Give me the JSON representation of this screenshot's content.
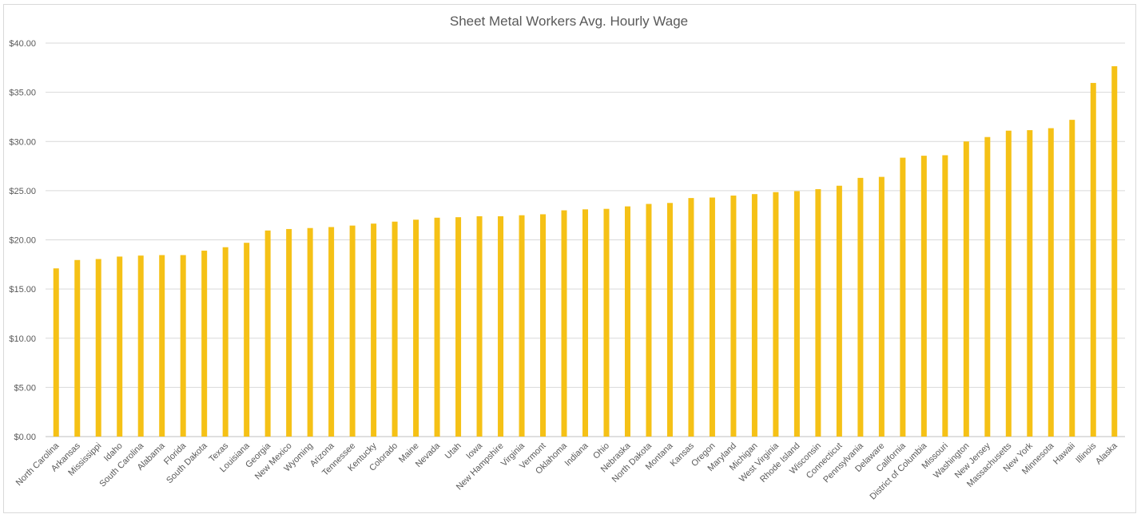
{
  "chart_data": {
    "type": "bar",
    "title": "Sheet Metal Workers Avg. Hourly Wage",
    "xlabel": "",
    "ylabel": "",
    "ylim": [
      0,
      40
    ],
    "yticks": [
      "$0.00",
      "$5.00",
      "$10.00",
      "$15.00",
      "$20.00",
      "$25.00",
      "$30.00",
      "$35.00",
      "$40.00"
    ],
    "ytick_values": [
      0,
      5,
      10,
      15,
      20,
      25,
      30,
      35,
      40
    ],
    "grid": true,
    "legend": "none",
    "bar_color": "#F5C116",
    "categories": [
      "North Carolina",
      "Arkansas",
      "Mississippi",
      "Idaho",
      "South Carolina",
      "Alabama",
      "Florida",
      "South Dakota",
      "Texas",
      "Louisiana",
      "Georgia",
      "New Mexico",
      "Wyoming",
      "Arizona",
      "Tennessee",
      "Kentucky",
      "Colorado",
      "Maine",
      "Nevada",
      "Utah",
      "Iowa",
      "New Hampshire",
      "Virginia",
      "Vermont",
      "Oklahoma",
      "Indiana",
      "Ohio",
      "Nebraska",
      "North Dakota",
      "Montana",
      "Kansas",
      "Oregon",
      "Maryland",
      "Michigan",
      "West Virginia",
      "Rhode Island",
      "Wisconsin",
      "Connecticut",
      "Pennsylvania",
      "Delaware",
      "California",
      "District of Columbia",
      "Missouri",
      "Washington",
      "New Jersey",
      "Massachusetts",
      "New York",
      "Minnesota",
      "Hawaii",
      "Illinois",
      "Alaska"
    ],
    "values": [
      17.1,
      17.95,
      18.05,
      18.3,
      18.4,
      18.45,
      18.45,
      18.9,
      19.25,
      19.7,
      20.95,
      21.1,
      21.2,
      21.3,
      21.45,
      21.65,
      21.85,
      22.05,
      22.25,
      22.3,
      22.4,
      22.4,
      22.5,
      22.6,
      23.0,
      23.1,
      23.15,
      23.4,
      23.65,
      23.75,
      24.25,
      24.3,
      24.5,
      24.65,
      24.85,
      24.95,
      25.15,
      25.5,
      26.3,
      26.4,
      28.35,
      28.55,
      28.6,
      30.0,
      30.45,
      31.1,
      31.15,
      31.35,
      32.2,
      35.95,
      37.65
    ]
  }
}
